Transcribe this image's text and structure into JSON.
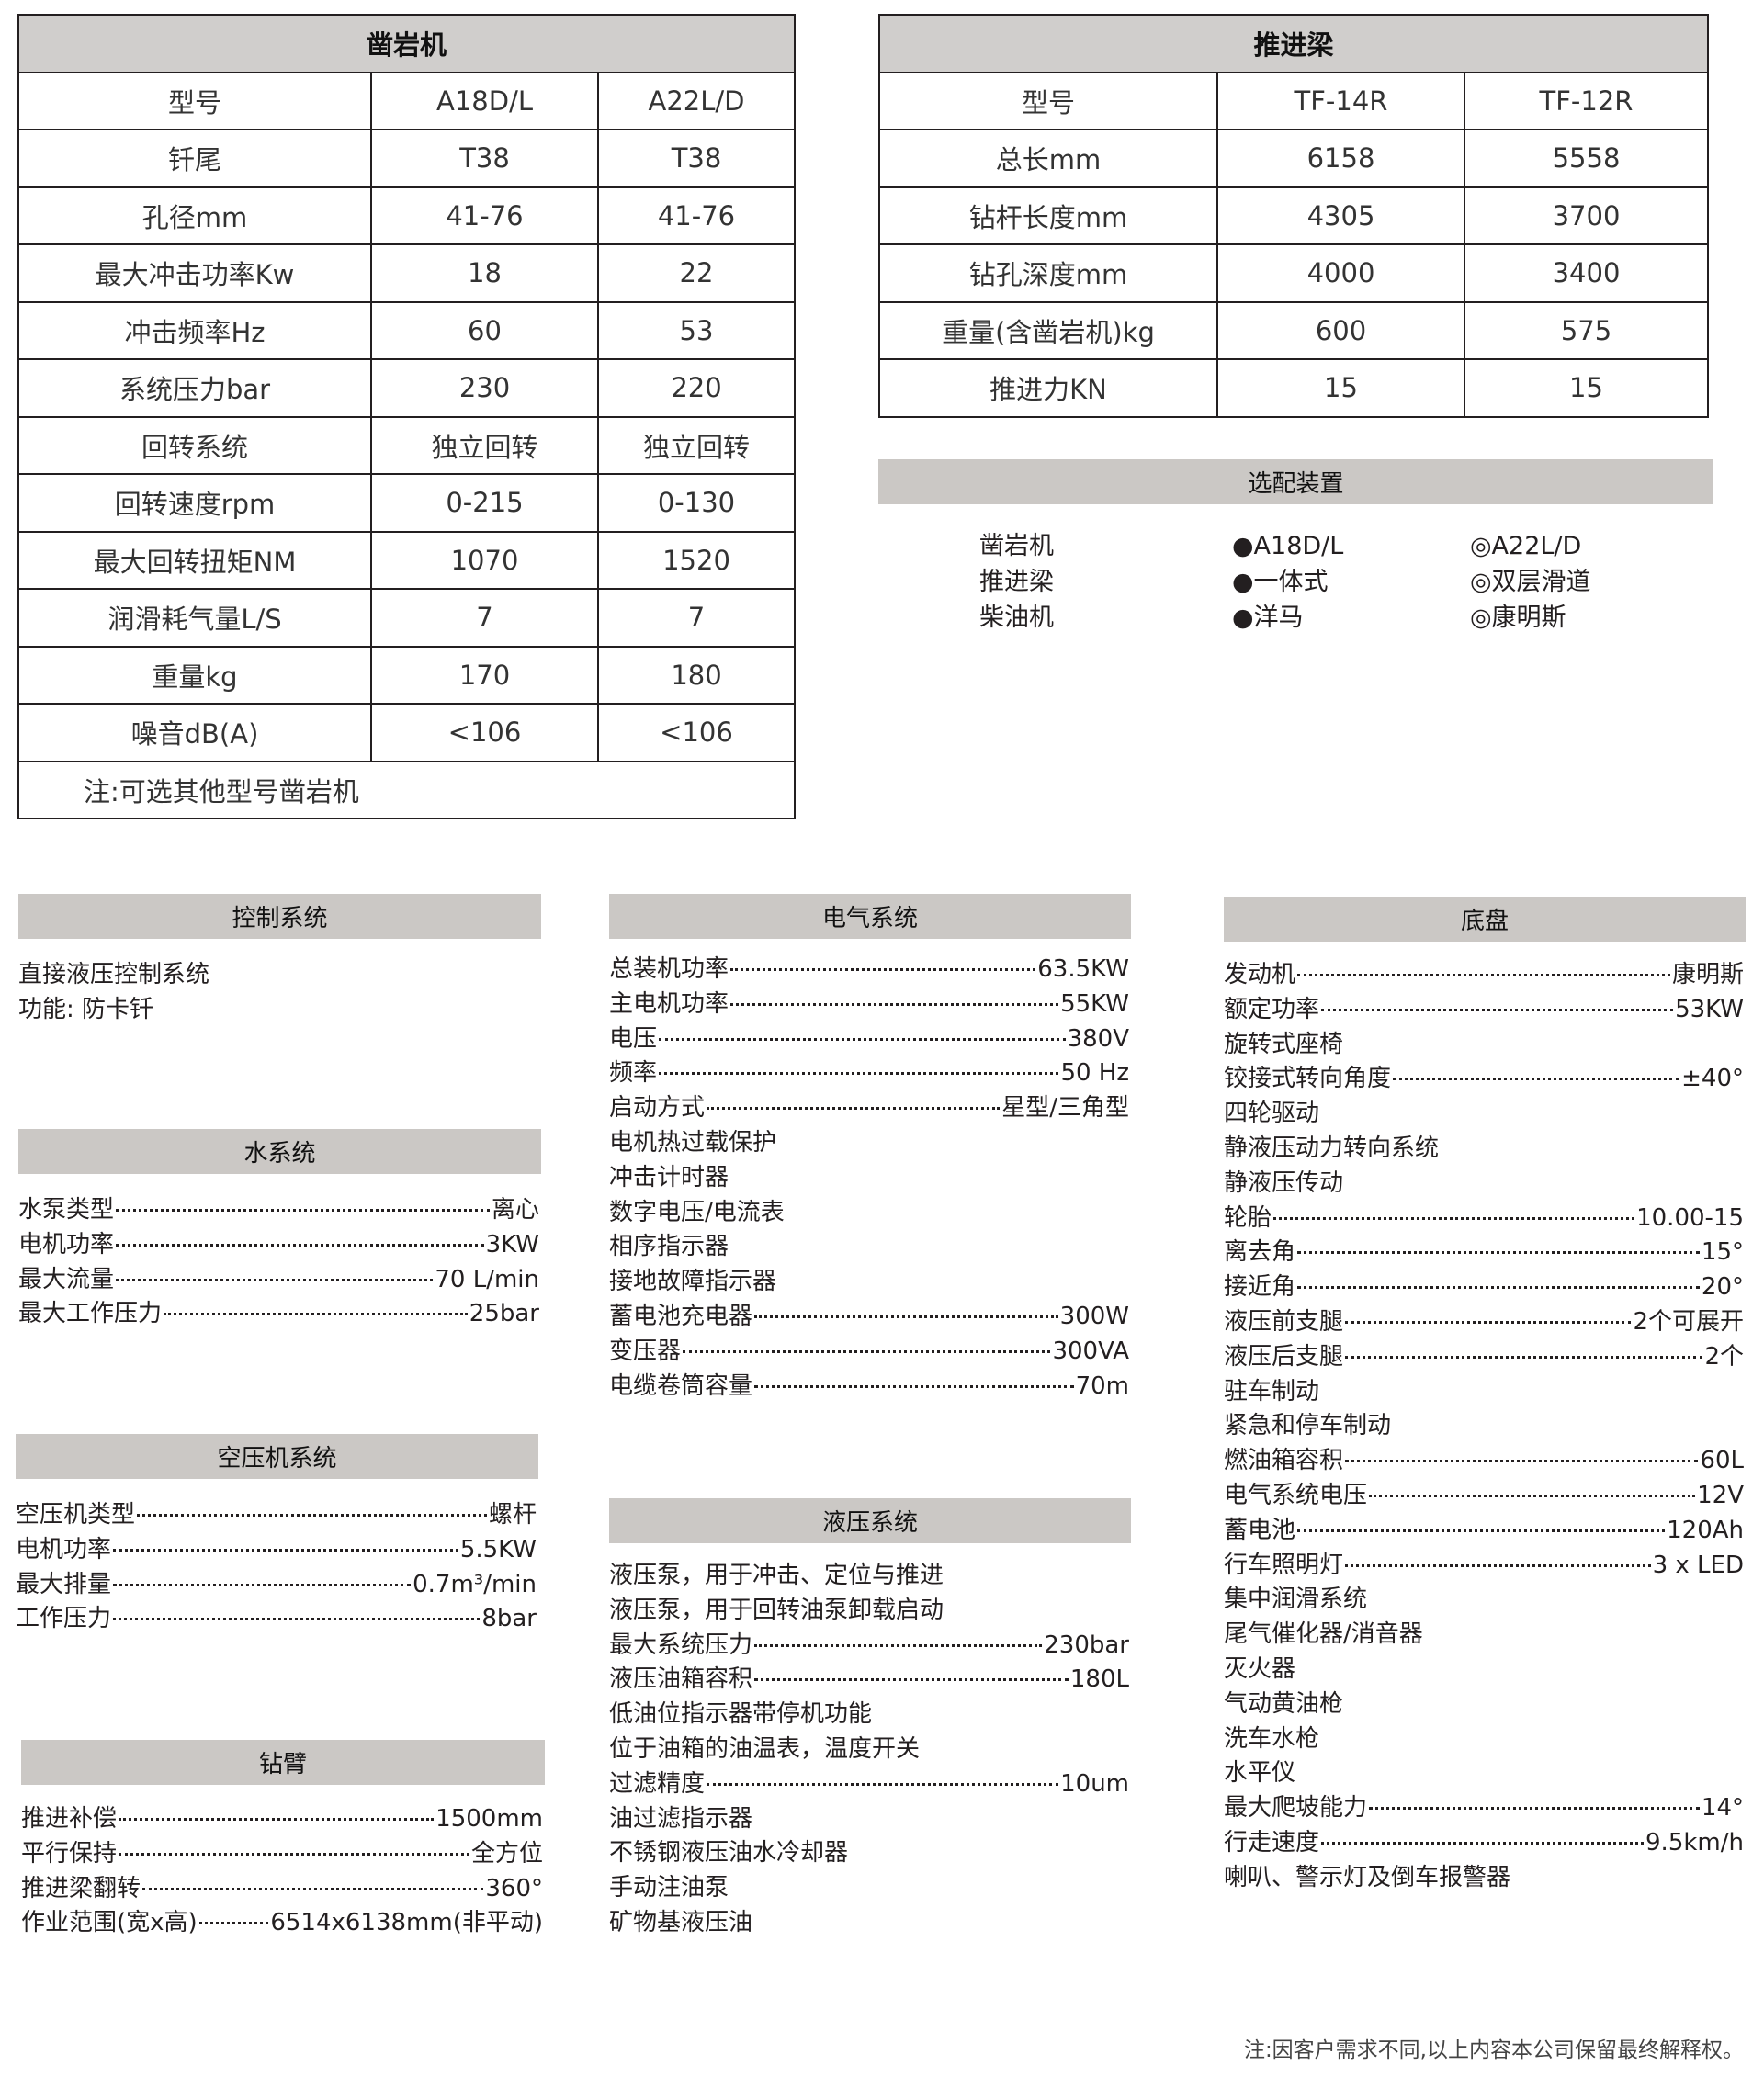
{
  "rock_drill": {
    "title": "凿岩机",
    "columns": [
      "型号",
      "A18D/L",
      "A22L/D"
    ],
    "rows": [
      [
        "钎尾",
        "T38",
        "T38"
      ],
      [
        "孔径mm",
        "41-76",
        "41-76"
      ],
      [
        "最大冲击功率Kw",
        "18",
        "22"
      ],
      [
        "冲击频率Hz",
        "60",
        "53"
      ],
      [
        "系统压力bar",
        "230",
        "220"
      ],
      [
        "回转系统",
        "独立回转",
        "独立回转"
      ],
      [
        "回转速度rpm",
        "0-215",
        "0-130"
      ],
      [
        "最大回转扭矩NM",
        "1070",
        "1520"
      ],
      [
        "润滑耗气量L/S",
        "7",
        "7"
      ],
      [
        "重量kg",
        "170",
        "180"
      ],
      [
        "噪音dB(A)",
        "<106",
        "<106"
      ]
    ],
    "note": "注:可选其他型号凿岩机"
  },
  "feed_beam": {
    "title": "推进梁",
    "columns": [
      "型号",
      "TF-14R",
      "TF-12R"
    ],
    "rows": [
      [
        "总长mm",
        "6158",
        "5558"
      ],
      [
        "钻杆长度mm",
        "4305",
        "3700"
      ],
      [
        "钻孔深度mm",
        "4000",
        "3400"
      ],
      [
        "重量(含凿岩机)kg",
        "600",
        "575"
      ],
      [
        "推进力KN",
        "15",
        "15"
      ]
    ]
  },
  "options": {
    "title": "选配装置",
    "labels": [
      "凿岩机",
      "推进梁",
      "柴油机"
    ],
    "standard": [
      "●A18D/L",
      "●一体式",
      "●洋马"
    ],
    "optional": [
      "◎A22L/D",
      "◎双层滑道",
      "◎康明斯"
    ]
  },
  "sections": {
    "control": {
      "title": "控制系统",
      "items": [
        {
          "label": "直接液压控制系统"
        },
        {
          "label": "功能:  防卡钎"
        }
      ]
    },
    "water": {
      "title": "水系统",
      "items": [
        {
          "label": "水泵类型",
          "value": "离心"
        },
        {
          "label": "电机功率",
          "value": "3KW"
        },
        {
          "label": "最大流量",
          "value": "70 L/min"
        },
        {
          "label": "最大工作压力",
          "value": "25bar"
        }
      ]
    },
    "air": {
      "title": "空压机系统",
      "items": [
        {
          "label": "空压机类型",
          "value": "螺杆"
        },
        {
          "label": "电机功率",
          "value": "5.5KW"
        },
        {
          "label": "最大排量",
          "value": "0.7m³/min"
        },
        {
          "label": "工作压力",
          "value": "8bar"
        }
      ]
    },
    "boom": {
      "title": "钻臂",
      "items": [
        {
          "label": "推进补偿",
          "value": "1500mm"
        },
        {
          "label": "平行保持",
          "value": "全方位"
        },
        {
          "label": "推进梁翻转",
          "value": "360°"
        },
        {
          "label": "作业范围(宽x高)  ",
          "value": "6514x6138mm(非平动)"
        }
      ]
    },
    "electric": {
      "title": "电气系统",
      "items": [
        {
          "label": "总装机功率",
          "value": "63.5KW"
        },
        {
          "label": "主电机功率",
          "value": "55KW"
        },
        {
          "label": "电压",
          "value": "380V"
        },
        {
          "label": "频率",
          "value": "50 Hz"
        },
        {
          "label": "启动方式",
          "value": "星型/三角型"
        },
        {
          "label": "电机热过载保护"
        },
        {
          "label": "冲击计时器"
        },
        {
          "label": "数字电压/电流表"
        },
        {
          "label": "相序指示器"
        },
        {
          "label": "接地故障指示器"
        },
        {
          "label": "蓄电池充电器",
          "value": "300W"
        },
        {
          "label": "变压器",
          "value": "300VA"
        },
        {
          "label": "电缆卷筒容量",
          "value": "70m"
        }
      ]
    },
    "hydraulic": {
      "title": "液压系统",
      "items": [
        {
          "label": "液压泵，用于冲击、定位与推进"
        },
        {
          "label": "液压泵，用于回转油泵卸载启动"
        },
        {
          "label": "最大系统压力",
          "value": "230bar"
        },
        {
          "label": "液压油箱容积",
          "value": "180L"
        },
        {
          "label": "低油位指示器带停机功能"
        },
        {
          "label": "位于油箱的油温表，温度开关"
        },
        {
          "label": "过滤精度",
          "value": "10um"
        },
        {
          "label": "油过滤指示器"
        },
        {
          "label": "不锈钢液压油水冷却器"
        },
        {
          "label": "手动注油泵"
        },
        {
          "label": "矿物基液压油"
        }
      ]
    },
    "chassis": {
      "title": "底盘",
      "items": [
        {
          "label": "发动机",
          "value": "康明斯"
        },
        {
          "label": "额定功率",
          "value": "53KW"
        },
        {
          "label": "旋转式座椅"
        },
        {
          "label": "铰接式转向角度",
          "value": "±40°"
        },
        {
          "label": "四轮驱动"
        },
        {
          "label": "静液压动力转向系统"
        },
        {
          "label": "静液压传动"
        },
        {
          "label": "轮胎",
          "value": "10.00-15"
        },
        {
          "label": "离去角",
          "value": "15°"
        },
        {
          "label": "接近角",
          "value": "20°"
        },
        {
          "label": "液压前支腿",
          "value": "2个可展开"
        },
        {
          "label": "液压后支腿",
          "value": "2个"
        },
        {
          "label": "驻车制动"
        },
        {
          "label": "紧急和停车制动"
        },
        {
          "label": "燃油箱容积",
          "value": "60L"
        },
        {
          "label": "电气系统电压",
          "value": "12V"
        },
        {
          "label": "蓄电池",
          "value": "120Ah"
        },
        {
          "label": "行车照明灯",
          "value": "3 x LED"
        },
        {
          "label": "集中润滑系统"
        },
        {
          "label": "尾气催化器/消音器"
        },
        {
          "label": "灭火器"
        },
        {
          "label": "气动黄油枪"
        },
        {
          "label": "洗车水枪"
        },
        {
          "label": "水平仪"
        },
        {
          "label": "最大爬坡能力",
          "value": "14°"
        },
        {
          "label": "行走速度",
          "value": "9.5km/h"
        },
        {
          "label": "喇叭、警示灯及倒车报警器"
        }
      ]
    }
  },
  "footer_note": "注:因客户需求不同,以上内容本公司保留最终解释权。"
}
